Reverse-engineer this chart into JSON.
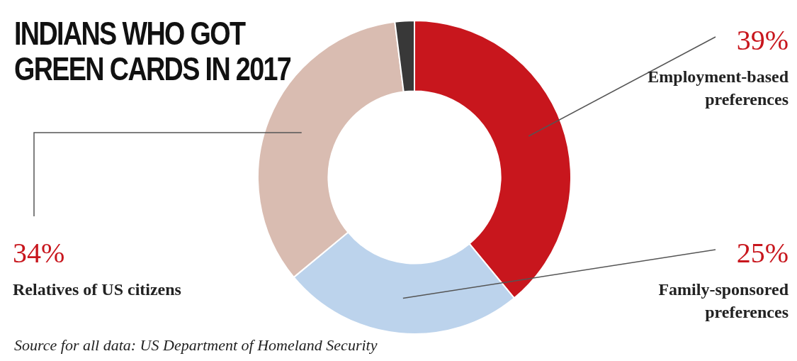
{
  "chart_data": {
    "type": "donut",
    "title": "INDIANS WHO GOT GREEN CARDS IN 2017",
    "categories": [
      "Employment-based preferences",
      "Family-sponsored preferences",
      "Relatives of US citizens",
      null
    ],
    "values": [
      39,
      25,
      34,
      2
    ],
    "colors": [
      "#c8161d",
      "#bcd3ec",
      "#d9bcb1",
      "#383838"
    ],
    "value_labels": [
      "39%",
      "25%",
      "34%",
      null
    ],
    "legend": false,
    "annotations": [
      "Source for all data: US Department of Homeland Security"
    ]
  }
}
